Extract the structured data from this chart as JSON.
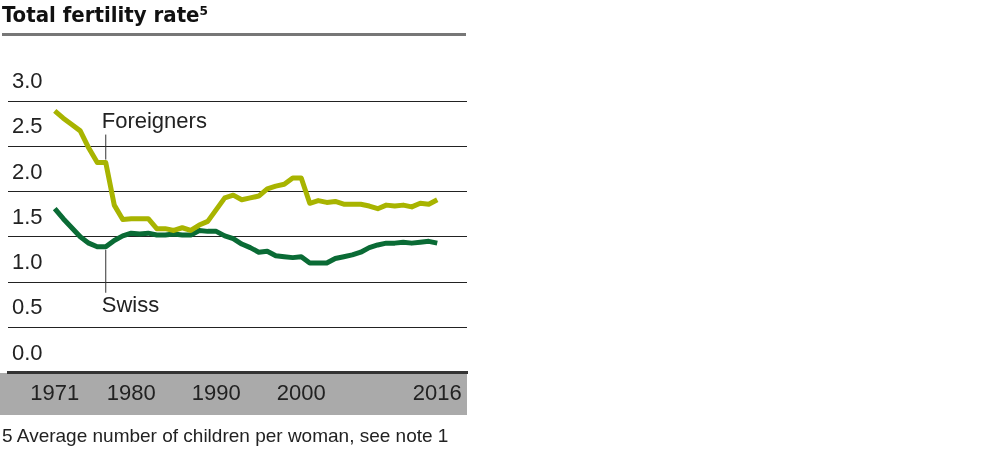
{
  "chart_data": {
    "type": "line",
    "title": "Total fertility rate⁵",
    "annotations": [
      "5 Average number of children per woman, see note 1"
    ],
    "x": [
      1971,
      1972,
      1973,
      1974,
      1975,
      1976,
      1977,
      1978,
      1979,
      1980,
      1981,
      1982,
      1983,
      1984,
      1985,
      1986,
      1987,
      1988,
      1989,
      1990,
      1991,
      1992,
      1993,
      1994,
      1995,
      1996,
      1997,
      1998,
      1999,
      2000,
      2001,
      2002,
      2003,
      2004,
      2005,
      2006,
      2007,
      2008,
      2009,
      2010,
      2011,
      2012,
      2013,
      2014,
      2015,
      2016
    ],
    "series": [
      {
        "name": "Foreigners",
        "color": "#a8b400",
        "values": [
          2.89,
          2.81,
          2.74,
          2.67,
          2.48,
          2.32,
          2.32,
          1.85,
          1.69,
          1.7,
          1.7,
          1.7,
          1.59,
          1.59,
          1.57,
          1.6,
          1.57,
          1.63,
          1.67,
          1.8,
          1.93,
          1.96,
          1.91,
          1.93,
          1.95,
          2.03,
          2.06,
          2.08,
          2.15,
          2.15,
          1.87,
          1.9,
          1.88,
          1.89,
          1.86,
          1.86,
          1.86,
          1.84,
          1.81,
          1.85,
          1.84,
          1.85,
          1.83,
          1.87,
          1.86,
          1.91
        ]
      },
      {
        "name": "Swiss",
        "color": "#0a6b35",
        "values": [
          1.81,
          1.7,
          1.6,
          1.5,
          1.43,
          1.39,
          1.39,
          1.46,
          1.51,
          1.54,
          1.53,
          1.54,
          1.52,
          1.52,
          1.53,
          1.52,
          1.52,
          1.57,
          1.56,
          1.56,
          1.51,
          1.48,
          1.42,
          1.38,
          1.33,
          1.34,
          1.29,
          1.28,
          1.27,
          1.28,
          1.21,
          1.21,
          1.21,
          1.26,
          1.28,
          1.3,
          1.33,
          1.38,
          1.41,
          1.43,
          1.43,
          1.44,
          1.43,
          1.44,
          1.45,
          1.43
        ]
      }
    ],
    "xlim": [
      1965.5,
      2019.5
    ],
    "xticks": [
      1971,
      1980,
      1990,
      2000,
      2016
    ],
    "ylim": [
      0,
      3
    ],
    "yticks": [
      {
        "value": 0,
        "label": "0.0"
      },
      {
        "value": 0.5,
        "label": "0.5"
      },
      {
        "value": 1,
        "label": "1.0"
      },
      {
        "value": 1.5,
        "label": "1.5"
      },
      {
        "value": 2,
        "label": "2.0"
      },
      {
        "value": 2.5,
        "label": "2.5"
      },
      {
        "value": 3,
        "label": "3.0"
      }
    ],
    "grid": "y",
    "legend": false,
    "marker": "none",
    "line_style": "solid"
  }
}
